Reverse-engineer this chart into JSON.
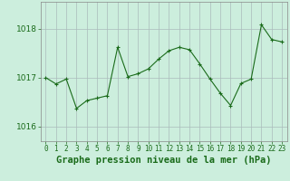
{
  "x": [
    0,
    1,
    2,
    3,
    4,
    5,
    6,
    7,
    8,
    9,
    10,
    11,
    12,
    13,
    14,
    15,
    16,
    17,
    18,
    19,
    20,
    21,
    22,
    23
  ],
  "y": [
    1017.0,
    1016.87,
    1016.97,
    1016.37,
    1016.53,
    1016.58,
    1016.63,
    1017.62,
    1017.02,
    1017.08,
    1017.18,
    1017.38,
    1017.55,
    1017.62,
    1017.57,
    1017.28,
    1016.97,
    1016.68,
    1016.43,
    1016.88,
    1016.97,
    1018.08,
    1017.78,
    1017.73
  ],
  "line_color": "#1a6b1a",
  "marker": "+",
  "marker_size": 3,
  "marker_linewidth": 0.8,
  "line_width": 0.8,
  "bg_color": "#cceedd",
  "grid_color": "#aabbbb",
  "xlabel": "Graphe pression niveau de la mer (hPa)",
  "yticks": [
    1016,
    1017,
    1018
  ],
  "ylim": [
    1015.7,
    1018.55
  ],
  "xlim": [
    -0.5,
    23.5
  ],
  "tick_color": "#1a6b1a",
  "xlabel_fontsize": 7.5,
  "ytick_fontsize": 6.5,
  "xtick_fontsize": 5.5
}
